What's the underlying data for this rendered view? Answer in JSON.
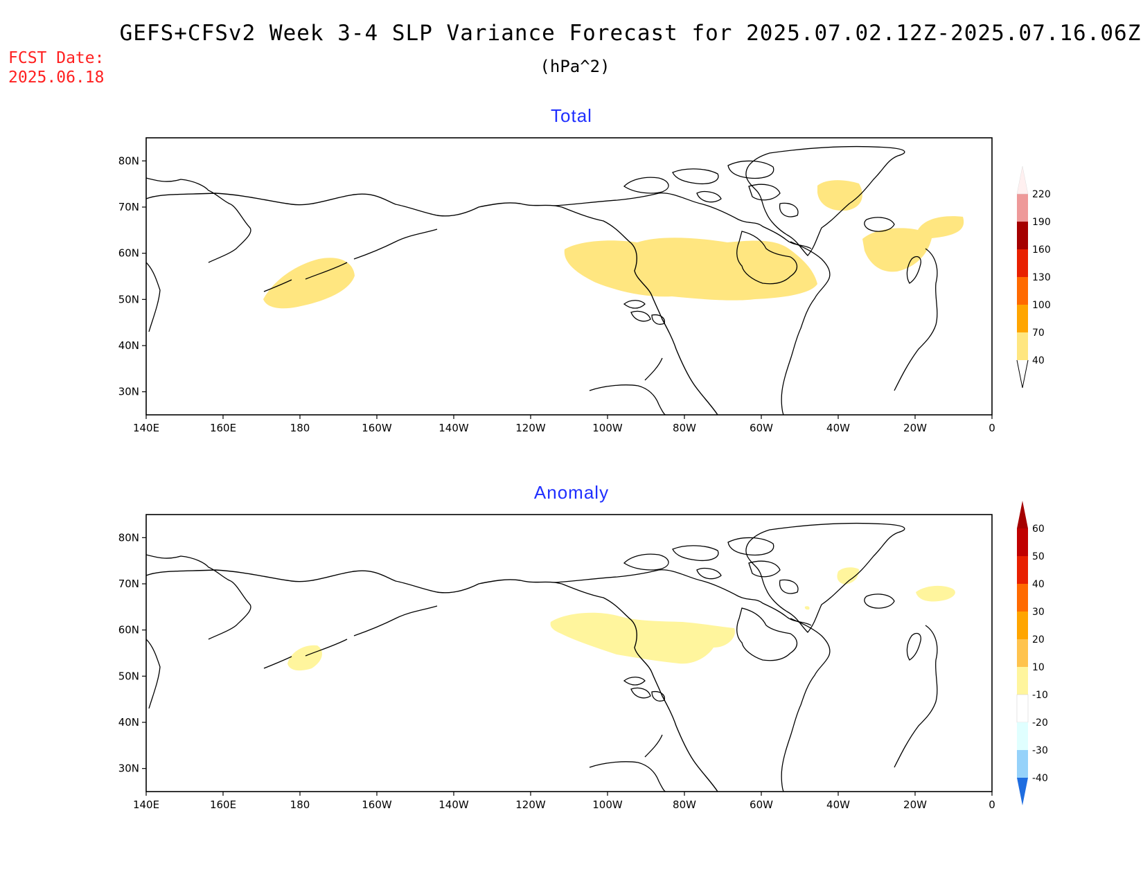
{
  "title": "GEFS+CFSv2 Week 3-4 SLP Variance Forecast for 2025.07.02.12Z-2025.07.16.06Z",
  "units": "(hPa^2)",
  "fcst_date": {
    "label": "FCST Date:",
    "value": "2025.06.18"
  },
  "panels": [
    {
      "title": "Total",
      "lat_ticks": [
        "80N",
        "70N",
        "60N",
        "50N",
        "40N",
        "30N"
      ],
      "lat_values": [
        80,
        70,
        60,
        50,
        40,
        30
      ],
      "lon_ticks": [
        "140E",
        "160E",
        "180",
        "160W",
        "140W",
        "120W",
        "100W",
        "80W",
        "60W",
        "40W",
        "20W",
        "0"
      ],
      "lon_values": [
        140,
        160,
        180,
        200,
        220,
        240,
        260,
        280,
        300,
        320,
        340,
        360
      ],
      "lon_range": [
        140,
        360
      ],
      "lat_range": [
        25,
        85
      ],
      "colorbar": {
        "labels": [
          "40",
          "70",
          "100",
          "130",
          "160",
          "190",
          "220"
        ],
        "colors": [
          "#ffe680",
          "#ffa500",
          "#ff6a00",
          "#e82000",
          "#a50000",
          "#ee9999",
          "#fde0e0"
        ],
        "below_color": "#ffffff",
        "above_color": "#fff0f0"
      }
    },
    {
      "title": "Anomaly",
      "lat_ticks": [
        "80N",
        "70N",
        "60N",
        "50N",
        "40N",
        "30N"
      ],
      "lat_values": [
        80,
        70,
        60,
        50,
        40,
        30
      ],
      "lon_ticks": [
        "140E",
        "160E",
        "180",
        "160W",
        "140W",
        "120W",
        "100W",
        "80W",
        "60W",
        "40W",
        "20W",
        "0"
      ],
      "lon_values": [
        140,
        160,
        180,
        200,
        220,
        240,
        260,
        280,
        300,
        320,
        340,
        360
      ],
      "lon_range": [
        140,
        360
      ],
      "lat_range": [
        25,
        85
      ],
      "colorbar": {
        "labels": [
          "60",
          "50",
          "40",
          "30",
          "20",
          "10",
          "-10",
          "-20",
          "-30",
          "-40"
        ],
        "colors": [
          "#c00000",
          "#e82000",
          "#ff6a00",
          "#ffa500",
          "#ffc34d",
          "#fff59d",
          "#ffffff",
          "#e0ffff",
          "#96d2fa",
          "#4ea0f0",
          "#1f6de0"
        ],
        "top_color": "#a50000",
        "bottom_color": "#1f6de0"
      }
    }
  ]
}
